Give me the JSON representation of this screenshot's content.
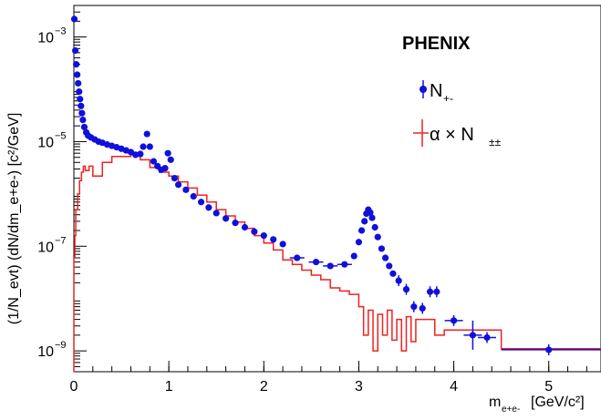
{
  "chart_data": {
    "type": "scatter",
    "title": "",
    "xlabel": "m",
    "xlabel_sub": "e+e-",
    "xunit": "[GeV/c²]",
    "ylabel_text": "(1/N_evt) (dN/dm_e+e-) [c²/GeV]",
    "yaxis_scale": "log",
    "xlim": [
      0,
      5.55
    ],
    "ylim": [
      4e-10,
      0.004
    ],
    "x_ticks": [
      0,
      1,
      2,
      3,
      4,
      5
    ],
    "x_tick_labels": [
      "0",
      "1",
      "2",
      "3",
      "4",
      "5"
    ],
    "y_ticks": [
      1e-09,
      1e-07,
      1e-05,
      0.001
    ],
    "y_tick_labels": [
      {
        "base": "10",
        "exp": "−9"
      },
      {
        "base": "10",
        "exp": "−7"
      },
      {
        "base": "10",
        "exp": "−5"
      },
      {
        "base": "10",
        "exp": "−3"
      }
    ],
    "annotation": "PHENIX",
    "legend": {
      "placement": "top-right",
      "entries": [
        {
          "label": "N",
          "sub": "+-",
          "color": "#1010dd"
        },
        {
          "label": "α × N",
          "sub": "±±",
          "color": "#ee2222"
        }
      ]
    },
    "series": [
      {
        "name": "N+-",
        "color": "#1010dd",
        "marker": "circle",
        "points": [
          {
            "x": 0.005,
            "y": 0.0022
          },
          {
            "x": 0.015,
            "y": 0.00055
          },
          {
            "x": 0.025,
            "y": 0.0003
          },
          {
            "x": 0.035,
            "y": 0.00019
          },
          {
            "x": 0.045,
            "y": 0.00013
          },
          {
            "x": 0.055,
            "y": 9e-05
          },
          {
            "x": 0.065,
            "y": 6.5e-05
          },
          {
            "x": 0.075,
            "y": 4.8e-05
          },
          {
            "x": 0.085,
            "y": 3.5e-05
          },
          {
            "x": 0.095,
            "y": 2.6e-05
          },
          {
            "x": 0.11,
            "y": 1.9e-05
          },
          {
            "x": 0.13,
            "y": 1.5e-05
          },
          {
            "x": 0.15,
            "y": 1.3e-05
          },
          {
            "x": 0.18,
            "y": 1.2e-05
          },
          {
            "x": 0.22,
            "y": 1.1e-05
          },
          {
            "x": 0.26,
            "y": 1e-05
          },
          {
            "x": 0.3,
            "y": 9.5e-06
          },
          {
            "x": 0.35,
            "y": 8.8e-06
          },
          {
            "x": 0.4,
            "y": 8.3e-06
          },
          {
            "x": 0.45,
            "y": 7.8e-06
          },
          {
            "x": 0.5,
            "y": 7.3e-06
          },
          {
            "x": 0.55,
            "y": 6.8e-06
          },
          {
            "x": 0.6,
            "y": 6.3e-06
          },
          {
            "x": 0.65,
            "y": 5.6e-06
          },
          {
            "x": 0.7,
            "y": 5.8e-06
          },
          {
            "x": 0.73,
            "y": 8e-06
          },
          {
            "x": 0.77,
            "y": 1.4e-05
          },
          {
            "x": 0.8,
            "y": 8e-06
          },
          {
            "x": 0.84,
            "y": 4.2e-06
          },
          {
            "x": 0.88,
            "y": 3.4e-06
          },
          {
            "x": 0.92,
            "y": 2.9e-06
          },
          {
            "x": 0.96,
            "y": 3.1e-06
          },
          {
            "x": 0.99,
            "y": 6e-06
          },
          {
            "x": 1.02,
            "y": 4.5e-06
          },
          {
            "x": 1.06,
            "y": 2e-06
          },
          {
            "x": 1.1,
            "y": 1.5e-06
          },
          {
            "x": 1.18,
            "y": 1.2e-06
          },
          {
            "x": 1.26,
            "y": 9e-07
          },
          {
            "x": 1.34,
            "y": 7e-07
          },
          {
            "x": 1.42,
            "y": 5.5e-07
          },
          {
            "x": 1.5,
            "y": 4.3e-07
          },
          {
            "x": 1.6,
            "y": 3.4e-07
          },
          {
            "x": 1.7,
            "y": 2.8e-07
          },
          {
            "x": 1.8,
            "y": 2.3e-07
          },
          {
            "x": 1.9,
            "y": 1.9e-07
          },
          {
            "x": 2.0,
            "y": 1.6e-07
          },
          {
            "x": 2.1,
            "y": 1.35e-07
          },
          {
            "x": 2.2,
            "y": 1.1e-07
          },
          {
            "x": 2.35,
            "y": 6e-08
          },
          {
            "x": 2.55,
            "y": 5e-08
          },
          {
            "x": 2.7,
            "y": 4.2e-08
          },
          {
            "x": 2.85,
            "y": 4.5e-08
          },
          {
            "x": 2.95,
            "y": 6.5e-08
          },
          {
            "x": 3.0,
            "y": 1.2e-07
          },
          {
            "x": 3.03,
            "y": 2e-07
          },
          {
            "x": 3.06,
            "y": 3e-07
          },
          {
            "x": 3.08,
            "y": 4.2e-07
          },
          {
            "x": 3.1,
            "y": 5e-07
          },
          {
            "x": 3.12,
            "y": 4.4e-07
          },
          {
            "x": 3.14,
            "y": 3.5e-07
          },
          {
            "x": 3.17,
            "y": 2.3e-07
          },
          {
            "x": 3.2,
            "y": 1.5e-07
          },
          {
            "x": 3.24,
            "y": 9e-08
          },
          {
            "x": 3.28,
            "y": 6e-08
          },
          {
            "x": 3.32,
            "y": 4.2e-08
          },
          {
            "x": 3.36,
            "y": 3e-08
          },
          {
            "x": 3.42,
            "y": 2.2e-08
          },
          {
            "x": 3.5,
            "y": 1.5e-08
          },
          {
            "x": 3.58,
            "y": 7e-09
          },
          {
            "x": 3.67,
            "y": 6.5e-09
          },
          {
            "x": 3.75,
            "y": 1.35e-08
          },
          {
            "x": 3.82,
            "y": 1.35e-08
          },
          {
            "x": 4.0,
            "y": 3.8e-09
          },
          {
            "x": 4.2,
            "y": 2e-09
          },
          {
            "x": 4.35,
            "y": 1.8e-09
          },
          {
            "x": 5.0,
            "y": 1.05e-09
          }
        ]
      },
      {
        "name": "α × N±±",
        "color": "#ee2222",
        "type": "step",
        "points": [
          {
            "x": 0.0,
            "y": 6e-08
          },
          {
            "x": 0.01,
            "y": 1.6e-07
          },
          {
            "x": 0.02,
            "y": 5e-07
          },
          {
            "x": 0.04,
            "y": 1e-06
          },
          {
            "x": 0.06,
            "y": 1.8e-06
          },
          {
            "x": 0.08,
            "y": 2.6e-06
          },
          {
            "x": 0.1,
            "y": 3.4e-06
          },
          {
            "x": 0.12,
            "y": 2.8e-06
          },
          {
            "x": 0.16,
            "y": 3.4e-06
          },
          {
            "x": 0.2,
            "y": 2.2e-06
          },
          {
            "x": 0.3,
            "y": 4e-06
          },
          {
            "x": 0.4,
            "y": 5.2e-06
          },
          {
            "x": 0.6,
            "y": 5.6e-06
          },
          {
            "x": 0.7,
            "y": 4.5e-06
          },
          {
            "x": 0.8,
            "y": 3.2e-06
          },
          {
            "x": 0.9,
            "y": 2.6e-06
          },
          {
            "x": 1.0,
            "y": 2.2e-06
          },
          {
            "x": 1.1,
            "y": 1.7e-06
          },
          {
            "x": 1.2,
            "y": 1.3e-06
          },
          {
            "x": 1.3,
            "y": 9.5e-07
          },
          {
            "x": 1.4,
            "y": 7e-07
          },
          {
            "x": 1.5,
            "y": 5e-07
          },
          {
            "x": 1.6,
            "y": 3.8e-07
          },
          {
            "x": 1.7,
            "y": 2.9e-07
          },
          {
            "x": 1.8,
            "y": 2.2e-07
          },
          {
            "x": 1.9,
            "y": 1.6e-07
          },
          {
            "x": 2.0,
            "y": 1.15e-07
          },
          {
            "x": 2.1,
            "y": 8.5e-08
          },
          {
            "x": 2.2,
            "y": 5.5e-08
          },
          {
            "x": 2.3,
            "y": 4.5e-08
          },
          {
            "x": 2.4,
            "y": 3.5e-08
          },
          {
            "x": 2.5,
            "y": 2.8e-08
          },
          {
            "x": 2.6,
            "y": 2.3e-08
          },
          {
            "x": 2.7,
            "y": 1.6e-08
          },
          {
            "x": 2.8,
            "y": 1.4e-08
          },
          {
            "x": 2.9,
            "y": 1.2e-08
          },
          {
            "x": 3.0,
            "y": 7e-09
          },
          {
            "x": 3.05,
            "y": 2e-09
          },
          {
            "x": 3.1,
            "y": 6e-09
          },
          {
            "x": 3.15,
            "y": 1e-09
          },
          {
            "x": 3.2,
            "y": 5e-09
          },
          {
            "x": 3.25,
            "y": 2e-09
          },
          {
            "x": 3.3,
            "y": 6e-09
          },
          {
            "x": 3.35,
            "y": 1.6e-09
          },
          {
            "x": 3.4,
            "y": 4e-09
          },
          {
            "x": 3.45,
            "y": 1e-09
          },
          {
            "x": 3.5,
            "y": 4.5e-09
          },
          {
            "x": 3.55,
            "y": 1.5e-09
          },
          {
            "x": 3.6,
            "y": 4e-09
          },
          {
            "x": 3.8,
            "y": 2e-09
          },
          {
            "x": 3.9,
            "y": 2.5e-09
          },
          {
            "x": 4.0,
            "y": 2.5e-09
          },
          {
            "x": 4.5,
            "y": 1.1e-09
          },
          {
            "x": 5.55,
            "y": 1.1e-09
          }
        ]
      }
    ]
  }
}
